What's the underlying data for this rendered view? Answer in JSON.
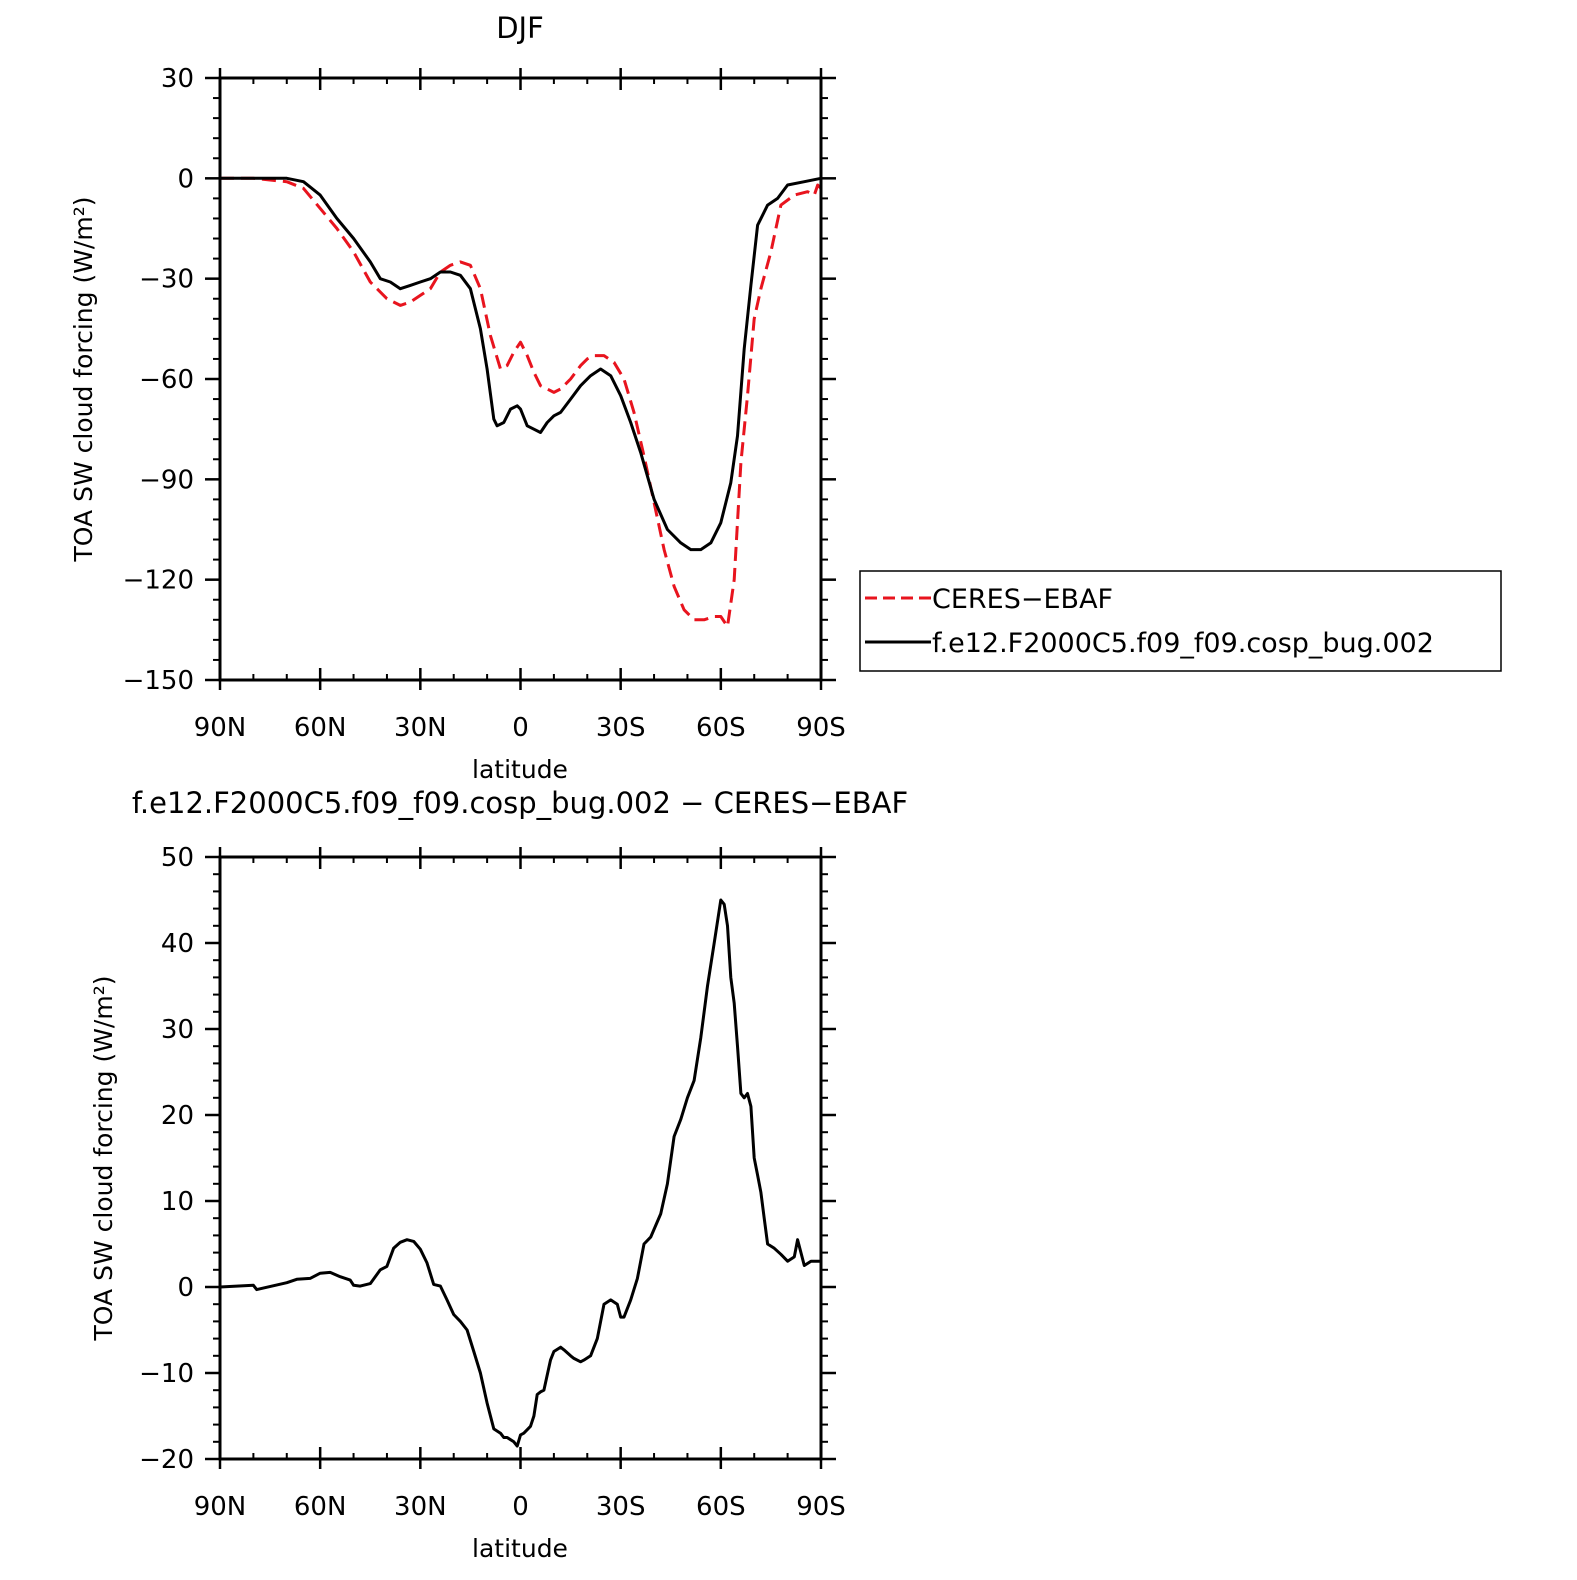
{
  "figure": {
    "top_title": "DJF",
    "bottom_title": "f.e12.F2000C5.f09_f09.cosp_bug.002 − CERES−EBAF",
    "legend": {
      "entries": [
        "CERES−EBAF",
        "f.e12.F2000C5.f09_f09.cosp_bug.002"
      ]
    }
  },
  "chart_data": [
    {
      "type": "line",
      "title": "DJF",
      "xlabel": "latitude",
      "ylabel": "TOA SW cloud forcing (W/m²)",
      "xlim": [
        90,
        -90
      ],
      "ylim": [
        -150,
        30
      ],
      "xticks": [
        90,
        60,
        30,
        0,
        -30,
        -60,
        -90
      ],
      "xtick_labels": [
        "90N",
        "60N",
        "30N",
        "0",
        "30S",
        "60S",
        "90S"
      ],
      "yticks": [
        30,
        0,
        -30,
        -60,
        -90,
        -120,
        -150
      ],
      "ytick_labels": [
        "30",
        "0",
        "−30",
        "−60",
        "−90",
        "−120",
        "−150"
      ],
      "legend_position": "right",
      "series": [
        {
          "name": "CERES−EBAF",
          "color": "#e8141e",
          "dash": "dashed",
          "x": [
            90,
            80,
            70,
            65,
            60,
            55,
            50,
            45,
            40,
            36,
            33,
            30,
            27,
            24,
            21,
            18,
            15,
            12,
            9,
            6,
            4,
            2,
            0,
            -2,
            -4,
            -6,
            -8,
            -10,
            -12,
            -15,
            -18,
            -20,
            -22,
            -25,
            -28,
            -31,
            -34,
            -37,
            -40,
            -43,
            -46,
            -49,
            -52,
            -55,
            -58,
            -60,
            -62,
            -64,
            -66,
            -68,
            -70,
            -72,
            -75,
            -78,
            -82,
            -86,
            -88,
            -89,
            -90
          ],
          "y": [
            0,
            0,
            -1,
            -3,
            -9,
            -15,
            -22,
            -31,
            -36,
            -38,
            -37,
            -35,
            -33,
            -28,
            -26,
            -25,
            -26,
            -33,
            -47,
            -57,
            -56,
            -52,
            -49,
            -53,
            -58,
            -62,
            -63,
            -64,
            -63,
            -60,
            -56,
            -54,
            -53,
            -53,
            -55,
            -60,
            -70,
            -83,
            -97,
            -111,
            -122,
            -129,
            -132,
            -132,
            -131,
            -131,
            -134,
            -120,
            -85,
            -65,
            -42,
            -33,
            -22,
            -8,
            -5,
            -4,
            -5,
            -2,
            -3
          ]
        },
        {
          "name": "f.e12.F2000C5.f09_f09.cosp_bug.002",
          "color": "#000000",
          "dash": "solid",
          "x": [
            90,
            80,
            70,
            65,
            60,
            55,
            50,
            45,
            42,
            39,
            36,
            33,
            30,
            27,
            24,
            21,
            18,
            15,
            12,
            10,
            8,
            7,
            5,
            3,
            1,
            0,
            -2,
            -4,
            -6,
            -8,
            -10,
            -12,
            -15,
            -18,
            -21,
            -24,
            -27,
            -30,
            -33,
            -36,
            -40,
            -44,
            -48,
            -51,
            -54,
            -57,
            -60,
            -63,
            -65,
            -67,
            -69,
            -71,
            -74,
            -77,
            -80,
            -85,
            -90
          ],
          "y": [
            0,
            0,
            0,
            -1,
            -5,
            -12,
            -18,
            -25,
            -30,
            -31,
            -33,
            -32,
            -31,
            -30,
            -28,
            -28,
            -29,
            -33,
            -45,
            -57,
            -72,
            -74,
            -73,
            -69,
            -68,
            -69,
            -74,
            -75,
            -76,
            -73,
            -71,
            -70,
            -66,
            -62,
            -59,
            -57,
            -59,
            -65,
            -73,
            -82,
            -96,
            -105,
            -109,
            -111,
            -111,
            -109,
            -103,
            -91,
            -77,
            -51,
            -32,
            -14,
            -8,
            -6,
            -2,
            -1,
            0
          ]
        }
      ]
    },
    {
      "type": "line",
      "title": "f.e12.F2000C5.f09_f09.cosp_bug.002 − CERES−EBAF",
      "xlabel": "latitude",
      "ylabel": "TOA SW cloud forcing (W/m²)",
      "xlim": [
        90,
        -90
      ],
      "ylim": [
        -20,
        50
      ],
      "xticks": [
        90,
        60,
        30,
        0,
        -30,
        -60,
        -90
      ],
      "xtick_labels": [
        "90N",
        "60N",
        "30N",
        "0",
        "30S",
        "60S",
        "90S"
      ],
      "yticks": [
        50,
        40,
        30,
        20,
        10,
        0,
        -10,
        -20
      ],
      "ytick_labels": [
        "50",
        "40",
        "30",
        "20",
        "10",
        "0",
        "−10",
        "−20"
      ],
      "series": [
        {
          "name": "f.e12.F2000C5.f09_f09.cosp_bug.002 − CERES−EBAF",
          "color": "#000000",
          "dash": "solid",
          "x": [
            90,
            80,
            79,
            70,
            67,
            63,
            60,
            57,
            54,
            51,
            50,
            48,
            45,
            42,
            40,
            38,
            36,
            34,
            32,
            30,
            28,
            26,
            24,
            22,
            20,
            18,
            16,
            14,
            12,
            10,
            8,
            6,
            5,
            4,
            2,
            1,
            0,
            -1,
            -3,
            -4,
            -5,
            -6,
            -7,
            -9,
            -10,
            -12,
            -13,
            -15,
            -16,
            -18,
            -19,
            -21,
            -23,
            -25,
            -27,
            -29,
            -30,
            -31,
            -33,
            -35,
            -37,
            -39,
            -42,
            -44,
            -46,
            -48,
            -50,
            -52,
            -54,
            -56,
            -58,
            -60,
            -61,
            -62,
            -63,
            -64,
            -65,
            -66,
            -67,
            -68,
            -69,
            -70,
            -71,
            -72,
            -73,
            -74,
            -76,
            -78,
            -80,
            -82,
            -83,
            -85,
            -87,
            -88,
            -89,
            -90
          ],
          "y": [
            0,
            0.2,
            -0.3,
            0.5,
            0.9,
            1.0,
            1.6,
            1.7,
            1.2,
            0.8,
            0.2,
            0.1,
            0.4,
            2.0,
            2.4,
            4.5,
            5.2,
            5.5,
            5.3,
            4.4,
            2.8,
            0.3,
            0.1,
            -1.5,
            -3.2,
            -4.0,
            -5.0,
            -7.5,
            -10.0,
            -13.5,
            -16.5,
            -17.0,
            -17.5,
            -17.5,
            -18.0,
            -18.5,
            -17.2,
            -17.0,
            -16.2,
            -15.0,
            -12.5,
            -12.2,
            -12.0,
            -8.5,
            -7.5,
            -7.0,
            -7.3,
            -8.0,
            -8.3,
            -8.7,
            -8.5,
            -8.0,
            -6.0,
            -2.0,
            -1.5,
            -2.0,
            -3.5,
            -3.5,
            -1.5,
            1.0,
            5.0,
            5.8,
            8.5,
            12.0,
            17.5,
            19.5,
            22.0,
            24.0,
            29.0,
            35.0,
            40.0,
            45.0,
            44.5,
            42.0,
            36.0,
            33.0,
            28.0,
            22.5,
            22.0,
            22.5,
            21.0,
            15.0,
            13.0,
            11.0,
            8.0,
            5.0,
            4.5,
            3.8,
            3.0,
            3.5,
            5.5,
            2.5,
            3.0,
            3.0,
            3.0,
            3.0
          ]
        }
      ]
    }
  ]
}
